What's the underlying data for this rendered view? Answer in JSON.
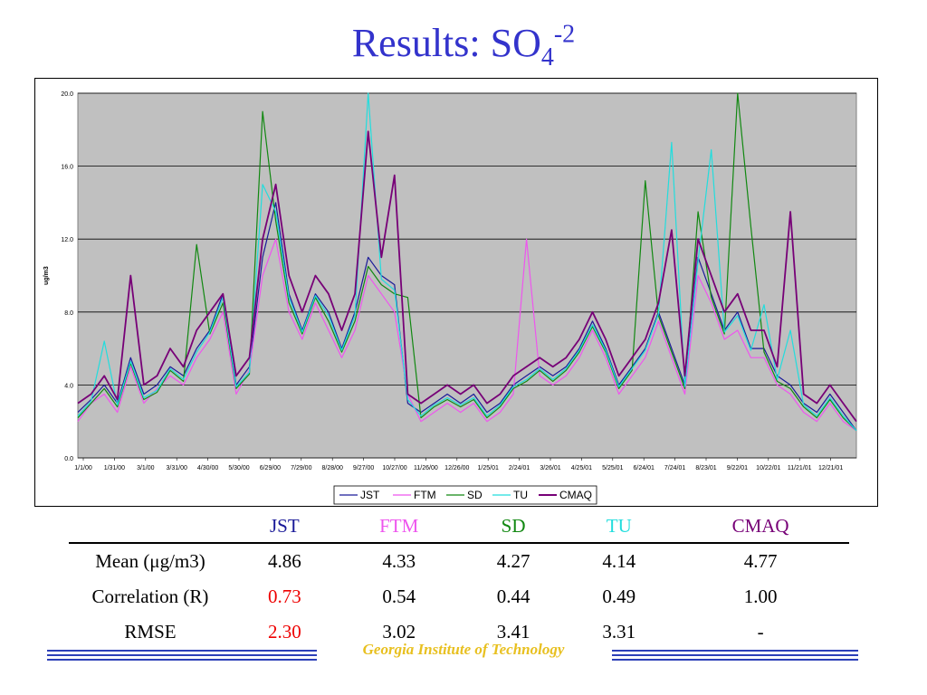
{
  "slide": {
    "title_main": "Results: SO",
    "title_sub": "4",
    "title_sup": "-2",
    "footer": "Georgia Institute of Technology"
  },
  "colors": {
    "JST": "#1a1a99",
    "FTM": "#ee55ee",
    "SD": "#118811",
    "TU": "#22dddd",
    "CMAQ": "#770077",
    "plot_bg": "#c0c0c0",
    "title": "#3333cc"
  },
  "chart_data": {
    "type": "line",
    "title": "",
    "xlabel": "",
    "ylabel": "ug/m3",
    "ylim": [
      0,
      20
    ],
    "yticks": [
      "0.0",
      "4.0",
      "8.0",
      "12.0",
      "16.0",
      "20.0"
    ],
    "grid": true,
    "legend_position": "bottom-center",
    "x_range": [
      "1/1/00",
      "12/31/01"
    ],
    "x_ticks": [
      "1/1/00",
      "1/31/00",
      "3/1/00",
      "3/31/00",
      "4/30/00",
      "5/30/00",
      "6/29/00",
      "7/29/00",
      "8/28/00",
      "9/27/00",
      "10/27/00",
      "11/26/00",
      "12/26/00",
      "1/25/01",
      "2/24/01",
      "3/26/01",
      "4/25/01",
      "5/25/01",
      "6/24/01",
      "7/24/01",
      "8/23/01",
      "9/22/01",
      "10/22/01",
      "11/21/01",
      "12/21/01"
    ],
    "series": [
      {
        "name": "JST",
        "values": [
          2.5,
          3.2,
          4.0,
          3.0,
          5.5,
          3.5,
          4.0,
          5.0,
          4.5,
          6.0,
          7.0,
          9.0,
          4.0,
          5.0,
          11.0,
          14.0,
          9.0,
          7.0,
          9.0,
          8.0,
          6.0,
          8.0,
          11.0,
          10.0,
          9.5,
          3.0,
          2.5,
          3.0,
          3.5,
          3.0,
          3.5,
          2.5,
          3.0,
          4.0,
          4.5,
          5.0,
          4.5,
          5.0,
          6.0,
          7.5,
          6.0,
          4.0,
          5.0,
          6.0,
          8.0,
          6.0,
          4.0,
          11.0,
          9.0,
          7.0,
          8.0,
          6.0,
          6.0,
          4.5,
          4.0,
          3.0,
          2.5,
          3.5,
          2.5,
          1.5
        ]
      },
      {
        "name": "FTM",
        "values": [
          2.0,
          3.0,
          3.5,
          2.5,
          5.0,
          3.0,
          3.8,
          4.5,
          4.0,
          5.5,
          6.5,
          8.0,
          3.5,
          4.8,
          10.0,
          12.0,
          8.0,
          6.5,
          8.5,
          7.0,
          5.5,
          7.0,
          10.0,
          9.0,
          8.0,
          3.5,
          2.0,
          2.5,
          3.0,
          2.5,
          3.0,
          2.0,
          2.5,
          3.5,
          12.0,
          4.5,
          4.0,
          4.5,
          5.5,
          7.0,
          5.5,
          3.5,
          4.5,
          5.5,
          7.5,
          5.5,
          3.5,
          10.0,
          8.5,
          6.5,
          7.0,
          5.5,
          5.5,
          4.0,
          3.5,
          2.5,
          2.0,
          3.0,
          2.0,
          1.5
        ]
      },
      {
        "name": "SD",
        "values": [
          2.2,
          3.0,
          3.8,
          2.8,
          5.2,
          3.2,
          3.6,
          4.8,
          4.2,
          11.7,
          6.8,
          8.5,
          3.8,
          4.6,
          19.0,
          13.0,
          8.5,
          6.8,
          8.8,
          7.5,
          5.8,
          7.5,
          10.5,
          9.5,
          9.0,
          8.8,
          2.2,
          2.8,
          3.2,
          2.8,
          3.2,
          2.2,
          2.8,
          3.8,
          4.2,
          4.8,
          4.2,
          4.8,
          5.8,
          7.2,
          5.8,
          3.8,
          4.8,
          15.2,
          7.8,
          5.8,
          3.8,
          13.5,
          8.8,
          6.8,
          20.0,
          12.7,
          5.8,
          4.2,
          3.8,
          2.8,
          2.2,
          3.2,
          2.2,
          1.5
        ]
      },
      {
        "name": "TU",
        "values": [
          2.3,
          3.1,
          6.4,
          2.9,
          5.3,
          3.3,
          3.7,
          4.9,
          4.3,
          5.8,
          6.9,
          8.8,
          3.9,
          4.7,
          15.0,
          13.5,
          8.8,
          6.9,
          8.9,
          7.8,
          5.9,
          7.8,
          20.0,
          9.8,
          9.2,
          3.2,
          2.3,
          2.9,
          3.3,
          2.9,
          3.3,
          2.3,
          2.9,
          3.9,
          4.3,
          4.9,
          4.3,
          4.9,
          5.9,
          7.3,
          5.9,
          3.9,
          4.9,
          5.9,
          7.9,
          17.3,
          3.9,
          10.8,
          16.9,
          6.9,
          7.8,
          5.9,
          8.4,
          4.3,
          7.0,
          2.9,
          2.3,
          3.3,
          2.3,
          1.5
        ]
      },
      {
        "name": "CMAQ",
        "values": [
          3.0,
          3.5,
          4.5,
          3.2,
          10.0,
          4.0,
          4.5,
          6.0,
          5.0,
          7.0,
          8.0,
          9.0,
          4.5,
          5.5,
          12.0,
          15.0,
          10.0,
          8.0,
          10.0,
          9.0,
          7.0,
          9.0,
          17.9,
          11.0,
          15.5,
          3.5,
          3.0,
          3.5,
          4.0,
          3.5,
          4.0,
          3.0,
          3.5,
          4.5,
          5.0,
          5.5,
          5.0,
          5.5,
          6.5,
          8.0,
          6.5,
          4.5,
          5.5,
          6.5,
          8.5,
          12.5,
          4.5,
          12.0,
          10.0,
          8.0,
          9.0,
          7.0,
          7.0,
          5.0,
          13.5,
          3.5,
          3.0,
          4.0,
          3.0,
          2.0
        ]
      }
    ]
  },
  "table": {
    "headers": [
      "JST",
      "FTM",
      "SD",
      "TU",
      "CMAQ"
    ],
    "rows": [
      {
        "label": "Mean (μg/m3)",
        "values": [
          "4.86",
          "4.33",
          "4.27",
          "4.14",
          "4.77"
        ]
      },
      {
        "label": "Correlation (R)",
        "values": [
          "0.73",
          "0.54",
          "0.44",
          "0.49",
          "1.00"
        ]
      },
      {
        "label": "RMSE",
        "values": [
          "2.30",
          "3.02",
          "3.41",
          "3.31",
          "-"
        ]
      }
    ]
  }
}
